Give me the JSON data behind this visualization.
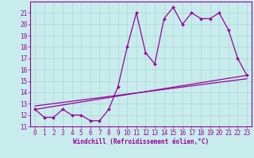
{
  "background_color": "#c8ecec",
  "line_color": "#990099",
  "xlabel": "Windchill (Refroidissement éolien,°C)",
  "x_hours": [
    0,
    1,
    2,
    3,
    4,
    5,
    6,
    7,
    8,
    9,
    10,
    11,
    12,
    13,
    14,
    15,
    16,
    17,
    18,
    19,
    20,
    21,
    22,
    23
  ],
  "temp": [
    12.5,
    11.8,
    11.8,
    12.5,
    12.0,
    12.0,
    11.5,
    11.5,
    12.5,
    14.5,
    18.0,
    21.0,
    17.5,
    16.5,
    20.5,
    21.5,
    20.0,
    21.0,
    20.5,
    20.5,
    21.0,
    19.5,
    17.0,
    15.5
  ],
  "lin1_start_y": 12.5,
  "lin1_end_y": 15.5,
  "lin2_start_y": 12.8,
  "lin2_end_y": 15.2,
  "ylim": [
    11,
    22
  ],
  "xlim": [
    -0.5,
    23.5
  ],
  "yticks": [
    11,
    12,
    13,
    14,
    15,
    16,
    17,
    18,
    19,
    20,
    21
  ],
  "xticks": [
    0,
    1,
    2,
    3,
    4,
    5,
    6,
    7,
    8,
    9,
    10,
    11,
    12,
    13,
    14,
    15,
    16,
    17,
    18,
    19,
    20,
    21,
    22,
    23
  ],
  "grid_color": "#aad4d4",
  "tick_fontsize": 5.5,
  "xlabel_fontsize": 5.5
}
